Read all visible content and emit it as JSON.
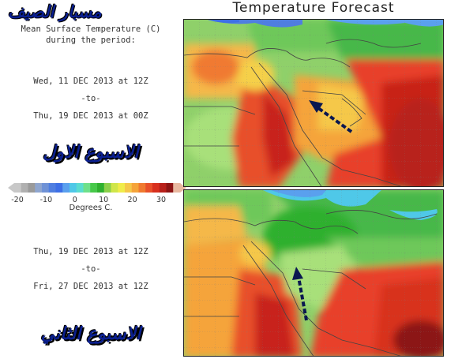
{
  "title": "Temperature Forecast",
  "logo_text": "مسبار الصيف",
  "subtitle_line1": "Mean Surface Temperature (C)",
  "subtitle_line2": "during the period:",
  "period1": {
    "start": "Wed, 11 DEC 2013 at 12Z",
    "sep": "-to-",
    "end": "Thu, 19 DEC 2013 at 00Z",
    "week_label": "الاسبوع الاول"
  },
  "period2": {
    "start": "Thu, 19 DEC 2013 at 12Z",
    "sep": "-to-",
    "end": "Fri, 27 DEC 2013 at 12Z",
    "week_label": "الاسبوع الثاني"
  },
  "legend": {
    "ticks": [
      "-20",
      "-10",
      "0",
      "10",
      "20",
      "30"
    ],
    "unit": "Degrees C.",
    "colors": [
      "#c8c8c8",
      "#b0b0b0",
      "#9a9a9a",
      "#8fa6cf",
      "#6f92d6",
      "#4f7ee0",
      "#3d6fe6",
      "#5aa0ee",
      "#4fc8e8",
      "#5adcd0",
      "#6ee08a",
      "#47c84a",
      "#2fb02f",
      "#8cd04a",
      "#d0e64a",
      "#f0ec4a",
      "#f5c84a",
      "#f5a43a",
      "#f07a30",
      "#e8502a",
      "#d8301e",
      "#b8201a",
      "#8c1414",
      "#e8b8a0"
    ]
  },
  "colors": {
    "arrow": "#0a1850",
    "week_text": "#0a1f8f",
    "border": "#222222"
  }
}
